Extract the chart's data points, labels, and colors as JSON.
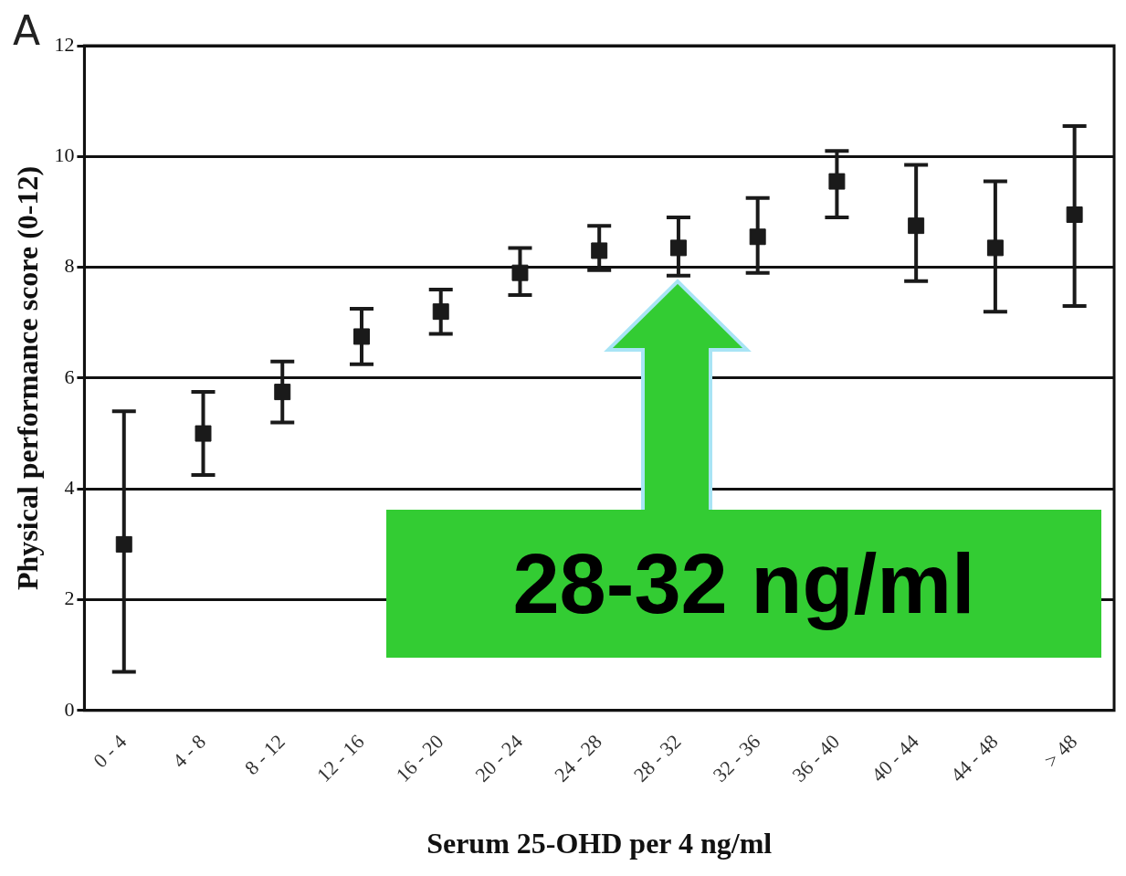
{
  "chart_data": {
    "type": "scatter",
    "xlabel": "Serum 25-OHD per 4 ng/ml",
    "ylabel": "Physical performance score (0-12)",
    "annotations": [
      "A",
      "28-32 ng/ml"
    ],
    "categories": [
      "0 - 4",
      "4 - 8",
      "8 - 12",
      "12 - 16",
      "16 - 20",
      "20 - 24",
      "24 - 28",
      "28 - 32",
      "32 - 36",
      "36 - 40",
      "40 - 44",
      "44 - 48",
      "> 48"
    ],
    "series": [
      {
        "color": "#1a1a1a",
        "values": [
          3.0,
          5.0,
          5.75,
          6.75,
          7.2,
          7.9,
          8.3,
          8.35,
          8.55,
          9.55,
          8.75,
          8.35,
          8.95
        ],
        "errors": [
          [
            0.7,
            5.4
          ],
          [
            4.25,
            5.75
          ],
          [
            5.2,
            6.3
          ],
          [
            6.25,
            7.25
          ],
          [
            6.8,
            7.6
          ],
          [
            7.5,
            8.35
          ],
          [
            7.95,
            8.75
          ],
          [
            7.85,
            8.9
          ],
          [
            7.9,
            9.25
          ],
          [
            8.9,
            10.1
          ],
          [
            7.75,
            9.85
          ],
          [
            7.2,
            9.55
          ],
          [
            7.3,
            10.55
          ]
        ]
      }
    ],
    "ylim": [
      0,
      12
    ],
    "yticks": [
      0,
      2,
      4,
      6,
      8,
      10,
      12
    ],
    "grid": "y",
    "legend": false,
    "marker": "square"
  }
}
